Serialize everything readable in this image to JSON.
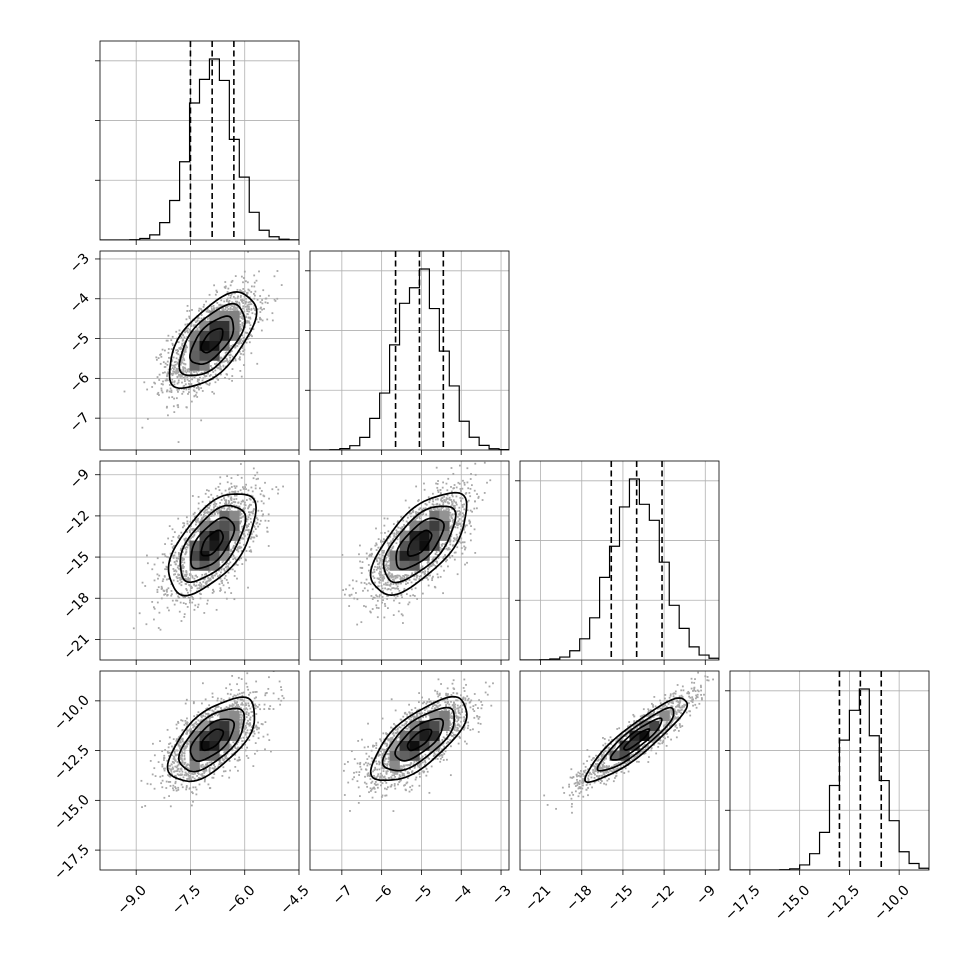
{
  "chart_data": {
    "type": "corner",
    "grid": true,
    "parameters": [
      {
        "mean": -6.9,
        "sd": 0.6,
        "range": [
          -10.0,
          -4.5
        ],
        "ticks": [
          -9.0,
          -7.5,
          -6.0,
          -4.5
        ],
        "tick_labels": [
          "−9.0",
          "−7.5",
          "−6.0",
          "−4.5"
        ]
      },
      {
        "mean": -5.05,
        "sd": 0.6,
        "range": [
          -7.8,
          -2.8
        ],
        "ticks": [
          -7,
          -6,
          -5,
          -4,
          -3
        ],
        "tick_labels": [
          "−7",
          "−6",
          "−5",
          "−4",
          "−3"
        ]
      },
      {
        "mean": -14.0,
        "sd": 1.85,
        "range": [
          -22.5,
          -8.0
        ],
        "ticks": [
          -21,
          -18,
          -15,
          -12,
          -9
        ],
        "tick_labels": [
          "−21",
          "−18",
          "−15",
          "−12",
          "−9"
        ]
      },
      {
        "mean": -11.95,
        "sd": 1.05,
        "range": [
          -18.5,
          -8.5
        ],
        "ticks": [
          -17.5,
          -15.0,
          -12.5,
          -10.0
        ],
        "tick_labels": [
          "−17.5",
          "−15.0",
          "−12.5",
          "−10.0"
        ]
      }
    ],
    "quantiles": [
      0.16,
      0.5,
      0.84
    ],
    "quantile_values": [
      [
        -7.5,
        -6.9,
        -6.3
      ],
      [
        -5.65,
        -5.05,
        -4.45
      ],
      [
        -15.85,
        -14.0,
        -12.15
      ],
      [
        -13.0,
        -11.95,
        -10.9
      ]
    ],
    "correlations": [
      [
        1.0,
        0.62,
        0.6,
        0.62
      ],
      [
        0.62,
        1.0,
        0.65,
        0.7
      ],
      [
        0.6,
        0.65,
        1.0,
        0.9
      ],
      [
        0.62,
        0.7,
        0.9,
        1.0
      ]
    ],
    "contour_levels": [
      0.5,
      1.0,
      1.5,
      2.0
    ],
    "density_bins": 20,
    "hist_bins": 20,
    "samples_per_panel": 2000
  }
}
